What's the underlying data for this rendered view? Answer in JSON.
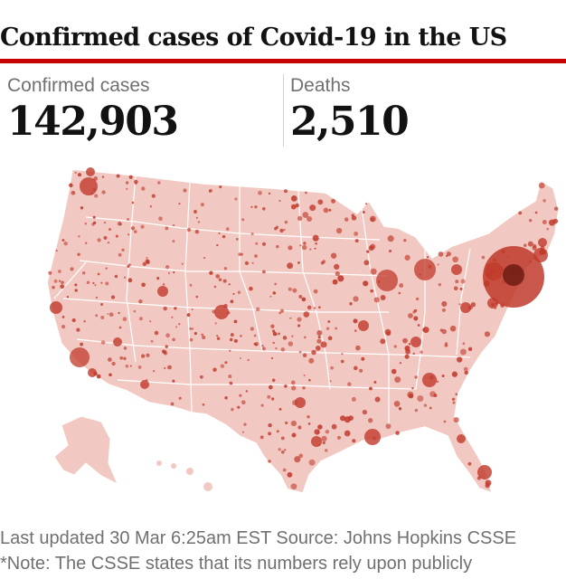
{
  "title": "Confirmed cases of Covid-19 in the US",
  "stats": {
    "confirmed": {
      "label": "Confirmed cases",
      "value": "142,903"
    },
    "deaths": {
      "label": "Deaths",
      "value": "2,510"
    }
  },
  "colors": {
    "accent": "#c70000",
    "land": "#f2c9c2",
    "bubble": "#c0392b",
    "text": "#121212",
    "muted": "#707070"
  },
  "footer": {
    "updated": "Last updated 30 Mar 6:25am EST Source: Johns Hopkins CSSE",
    "note": "*Note: The CSSE states that its numbers rely upon publicly"
  }
}
